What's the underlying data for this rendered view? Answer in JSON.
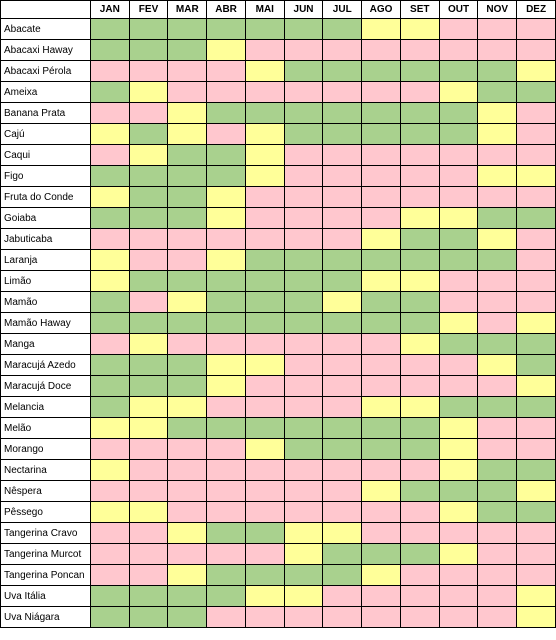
{
  "legend_colors": {
    "g": "#a9d18e",
    "y": "#ffff99",
    "p": "#ffc7ce"
  },
  "table": {
    "corner_label": "",
    "months": [
      "JAN",
      "FEV",
      "MAR",
      "ABR",
      "MAI",
      "JUN",
      "JUL",
      "AGO",
      "SET",
      "OUT",
      "NOV",
      "DEZ"
    ],
    "rows": [
      {
        "fruit": "Abacate",
        "cells": [
          "g",
          "g",
          "g",
          "g",
          "g",
          "g",
          "g",
          "y",
          "y",
          "p",
          "p",
          "p"
        ]
      },
      {
        "fruit": "Abacaxi Haway",
        "cells": [
          "g",
          "g",
          "g",
          "y",
          "p",
          "p",
          "p",
          "p",
          "p",
          "p",
          "p",
          "p"
        ]
      },
      {
        "fruit": "Abacaxi Pérola",
        "cells": [
          "p",
          "p",
          "p",
          "p",
          "y",
          "g",
          "g",
          "g",
          "g",
          "g",
          "g",
          "y"
        ]
      },
      {
        "fruit": "Ameixa",
        "cells": [
          "g",
          "y",
          "p",
          "p",
          "p",
          "p",
          "p",
          "p",
          "p",
          "y",
          "g",
          "g"
        ]
      },
      {
        "fruit": "Banana Prata",
        "cells": [
          "p",
          "p",
          "y",
          "g",
          "g",
          "g",
          "g",
          "g",
          "g",
          "g",
          "y",
          "p"
        ]
      },
      {
        "fruit": "Cajú",
        "cells": [
          "y",
          "g",
          "y",
          "p",
          "y",
          "g",
          "g",
          "g",
          "g",
          "g",
          "y",
          "p"
        ]
      },
      {
        "fruit": "Caqui",
        "cells": [
          "p",
          "y",
          "g",
          "g",
          "y",
          "p",
          "p",
          "p",
          "p",
          "p",
          "p",
          "p"
        ]
      },
      {
        "fruit": "Figo",
        "cells": [
          "g",
          "g",
          "g",
          "g",
          "y",
          "p",
          "p",
          "p",
          "p",
          "p",
          "y",
          "y"
        ]
      },
      {
        "fruit": "Fruta do Conde",
        "cells": [
          "y",
          "g",
          "g",
          "y",
          "p",
          "p",
          "p",
          "p",
          "p",
          "p",
          "p",
          "p"
        ]
      },
      {
        "fruit": "Goiaba",
        "cells": [
          "g",
          "g",
          "g",
          "y",
          "p",
          "p",
          "p",
          "p",
          "y",
          "y",
          "g",
          "g"
        ]
      },
      {
        "fruit": "Jabuticaba",
        "cells": [
          "p",
          "p",
          "p",
          "p",
          "p",
          "p",
          "p",
          "y",
          "g",
          "g",
          "y",
          "p"
        ]
      },
      {
        "fruit": "Laranja",
        "cells": [
          "y",
          "p",
          "p",
          "y",
          "g",
          "g",
          "g",
          "g",
          "g",
          "g",
          "g",
          "p"
        ]
      },
      {
        "fruit": "Limão",
        "cells": [
          "y",
          "g",
          "g",
          "g",
          "g",
          "g",
          "g",
          "y",
          "y",
          "p",
          "p",
          "p"
        ]
      },
      {
        "fruit": "Mamão",
        "cells": [
          "g",
          "p",
          "y",
          "g",
          "g",
          "g",
          "y",
          "g",
          "g",
          "p",
          "p",
          "p"
        ]
      },
      {
        "fruit": "Mamão Haway",
        "cells": [
          "g",
          "g",
          "g",
          "g",
          "g",
          "g",
          "g",
          "g",
          "g",
          "y",
          "p",
          "y"
        ]
      },
      {
        "fruit": "Manga",
        "cells": [
          "p",
          "y",
          "p",
          "p",
          "p",
          "p",
          "p",
          "p",
          "y",
          "g",
          "g",
          "g"
        ]
      },
      {
        "fruit": "Maracujá Azedo",
        "cells": [
          "g",
          "g",
          "g",
          "y",
          "y",
          "p",
          "p",
          "p",
          "p",
          "p",
          "y",
          "g"
        ]
      },
      {
        "fruit": "Maracujá Doce",
        "cells": [
          "g",
          "g",
          "g",
          "y",
          "p",
          "p",
          "p",
          "p",
          "p",
          "p",
          "p",
          "y"
        ]
      },
      {
        "fruit": "Melancia",
        "cells": [
          "g",
          "y",
          "y",
          "p",
          "p",
          "p",
          "p",
          "y",
          "y",
          "g",
          "g",
          "g"
        ]
      },
      {
        "fruit": "Melão",
        "cells": [
          "y",
          "y",
          "g",
          "g",
          "g",
          "g",
          "g",
          "g",
          "g",
          "y",
          "p",
          "p"
        ]
      },
      {
        "fruit": "Morango",
        "cells": [
          "p",
          "p",
          "p",
          "p",
          "y",
          "g",
          "g",
          "g",
          "g",
          "y",
          "p",
          "p"
        ]
      },
      {
        "fruit": "Nectarina",
        "cells": [
          "y",
          "p",
          "p",
          "p",
          "p",
          "p",
          "p",
          "p",
          "p",
          "y",
          "g",
          "g"
        ]
      },
      {
        "fruit": "Nêspera",
        "cells": [
          "p",
          "p",
          "p",
          "p",
          "p",
          "p",
          "p",
          "y",
          "g",
          "g",
          "g",
          "y"
        ]
      },
      {
        "fruit": "Pêssego",
        "cells": [
          "y",
          "y",
          "p",
          "p",
          "p",
          "p",
          "p",
          "p",
          "p",
          "y",
          "g",
          "g"
        ]
      },
      {
        "fruit": "Tangerina Cravo",
        "cells": [
          "p",
          "p",
          "y",
          "g",
          "g",
          "y",
          "y",
          "p",
          "p",
          "p",
          "p",
          "p"
        ]
      },
      {
        "fruit": "Tangerina Murcot",
        "cells": [
          "p",
          "p",
          "p",
          "p",
          "p",
          "y",
          "g",
          "g",
          "g",
          "y",
          "p",
          "p"
        ]
      },
      {
        "fruit": "Tangerina Poncan",
        "cells": [
          "p",
          "p",
          "y",
          "g",
          "g",
          "g",
          "g",
          "y",
          "p",
          "p",
          "p",
          "p"
        ]
      },
      {
        "fruit": "Uva Itália",
        "cells": [
          "g",
          "g",
          "g",
          "g",
          "y",
          "y",
          "p",
          "p",
          "p",
          "p",
          "p",
          "y"
        ]
      },
      {
        "fruit": "Uva Niágara",
        "cells": [
          "g",
          "g",
          "g",
          "p",
          "p",
          "p",
          "p",
          "p",
          "p",
          "p",
          "p",
          "y"
        ]
      }
    ]
  }
}
